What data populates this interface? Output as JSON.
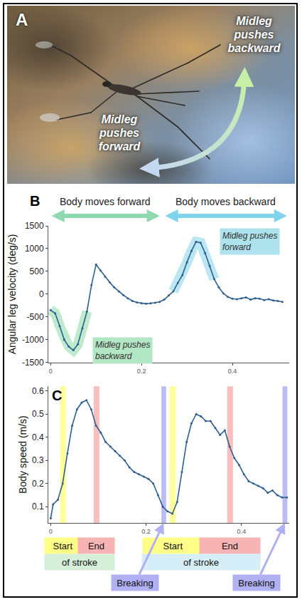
{
  "panel_a": {
    "label": "A",
    "texts": [
      "Midleg pushes backward",
      "Midleg pushes forward"
    ]
  },
  "chart_data": [
    {
      "label": "B",
      "type": "line",
      "y_label": "Angular leg velocity (deg/s)",
      "color": "#2f5f8f",
      "marker": "circle",
      "grid": false,
      "x": [
        0,
        0.01,
        0.02,
        0.03,
        0.04,
        0.05,
        0.06,
        0.07,
        0.08,
        0.09,
        0.1,
        0.11,
        0.12,
        0.13,
        0.14,
        0.15,
        0.16,
        0.17,
        0.18,
        0.19,
        0.2,
        0.21,
        0.22,
        0.23,
        0.24,
        0.25,
        0.26,
        0.27,
        0.28,
        0.29,
        0.3,
        0.31,
        0.32,
        0.33,
        0.34,
        0.35,
        0.36,
        0.37,
        0.38,
        0.39,
        0.4,
        0.41,
        0.42,
        0.43,
        0.44,
        0.45,
        0.46,
        0.47,
        0.48,
        0.49,
        0.5,
        0.51
      ],
      "values": [
        -350,
        -420,
        -700,
        -1000,
        -1150,
        -1230,
        -1100,
        -750,
        -380,
        200,
        650,
        520,
        380,
        260,
        150,
        60,
        -20,
        -90,
        -150,
        -180,
        -200,
        -210,
        -200,
        -190,
        -170,
        -120,
        -30,
        60,
        250,
        420,
        700,
        950,
        1150,
        1130,
        900,
        620,
        330,
        150,
        20,
        -60,
        -100,
        -110,
        -90,
        -70,
        -120,
        -90,
        -100,
        -130,
        -110,
        -140,
        -150,
        -170
      ],
      "xlim": [
        -0.005,
        0.525
      ],
      "xticks": [
        0,
        0.2,
        0.4
      ],
      "ylim": [
        -1500,
        1500
      ],
      "yticks": [
        -1500,
        -1000,
        -500,
        0,
        500,
        1000,
        1500
      ],
      "spans": [
        {
          "text": "Body moves forward",
          "from": 0,
          "to": 0.24,
          "color": "#8fd9b0"
        },
        {
          "text": "Body moves backward",
          "from": 0.25,
          "to": 0.52,
          "color": "#7fd3ea"
        }
      ],
      "highlights": [
        {
          "text": "Midleg pushes backward",
          "from": 0,
          "to": 0.08,
          "color": "#b3e6c4"
        },
        {
          "text": "Midleg pushes forward",
          "from": 0.27,
          "to": 0.36,
          "color": "#aee3ee"
        }
      ]
    },
    {
      "label": "C",
      "type": "line",
      "y_label": "Body speed (m/s)",
      "color": "#2f5f8f",
      "marker": "circle",
      "grid": false,
      "x": [
        0,
        0.005,
        0.015,
        0.025,
        0.035,
        0.045,
        0.055,
        0.065,
        0.075,
        0.085,
        0.095,
        0.105,
        0.115,
        0.125,
        0.135,
        0.145,
        0.155,
        0.165,
        0.175,
        0.185,
        0.195,
        0.205,
        0.215,
        0.225,
        0.235,
        0.245,
        0.255,
        0.265,
        0.275,
        0.285,
        0.295,
        0.305,
        0.315,
        0.325,
        0.335,
        0.345,
        0.355,
        0.365,
        0.375,
        0.385,
        0.395,
        0.405,
        0.415,
        0.425,
        0.435,
        0.445,
        0.455,
        0.465,
        0.475,
        0.485,
        0.495
      ],
      "values": [
        0.05,
        0.11,
        0.13,
        0.2,
        0.33,
        0.45,
        0.52,
        0.55,
        0.56,
        0.52,
        0.45,
        0.42,
        0.38,
        0.36,
        0.34,
        0.32,
        0.3,
        0.27,
        0.25,
        0.24,
        0.23,
        0.22,
        0.2,
        0.15,
        0.1,
        0.08,
        0.07,
        0.12,
        0.25,
        0.38,
        0.46,
        0.5,
        0.49,
        0.47,
        0.47,
        0.44,
        0.41,
        0.43,
        0.36,
        0.31,
        0.28,
        0.24,
        0.21,
        0.2,
        0.19,
        0.18,
        0.16,
        0.17,
        0.15,
        0.14,
        0.14
      ],
      "xlim": [
        -0.005,
        0.5
      ],
      "xticks": [
        0,
        0.2,
        0.4
      ],
      "ylim": [
        0.03,
        0.62
      ],
      "yticks": [
        0.1,
        0.2,
        0.3,
        0.4,
        0.5,
        0.6
      ],
      "start_color": "#ffff88",
      "end_color": "#f8b4b4",
      "break_color": "#b0b0f2",
      "strokes": [
        {
          "start": {
            "from": 0.02,
            "to": 0.032
          },
          "end": {
            "from": 0.09,
            "to": 0.102
          },
          "start_label": "Start",
          "end_label": "End",
          "text": "of stroke",
          "color": "#d5efd9"
        },
        {
          "start": {
            "from": 0.25,
            "to": 0.262
          },
          "end": {
            "from": 0.37,
            "to": 0.382
          },
          "start_label": "Start",
          "end_label": "End",
          "text": "of stroke",
          "color": "#d6eef8"
        }
      ],
      "breaks": [
        {
          "from": 0.232,
          "to": 0.242,
          "label": "Breaking"
        },
        {
          "from": 0.486,
          "to": 0.496,
          "label": "Breaking"
        }
      ]
    }
  ]
}
